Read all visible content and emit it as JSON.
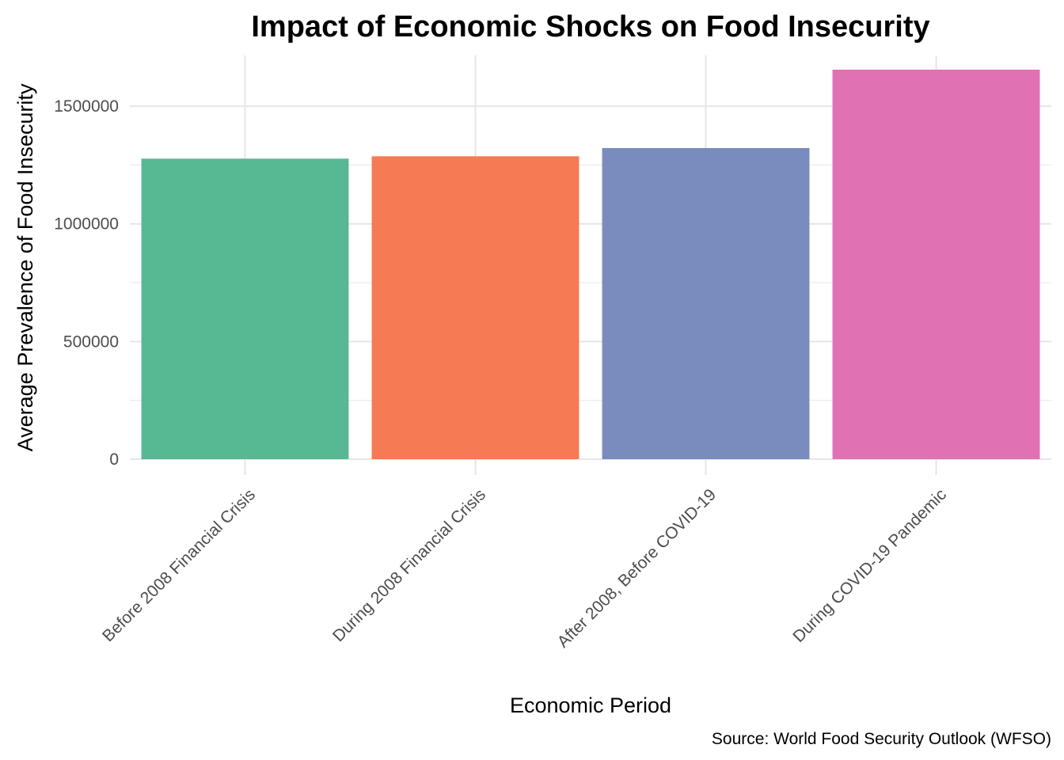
{
  "chart_data": {
    "type": "bar",
    "title": "Impact of Economic Shocks on Food Insecurity",
    "xlabel": "Economic Period",
    "ylabel": "Average Prevalence of Food Insecurity",
    "caption": "Source: World Food Security Outlook (WFSO)",
    "categories": [
      "Before 2008 Financial Crisis",
      "During 2008 Financial Crisis",
      "After 2008, Before COVID-19",
      "During COVID-19 Pandemic"
    ],
    "values": [
      1277000,
      1287000,
      1322000,
      1655000
    ],
    "colors": [
      "#57b994",
      "#f67a53",
      "#7a8cbd",
      "#e072b4"
    ],
    "ylim": [
      0,
      1740000
    ],
    "yticks": [
      0,
      500000,
      1000000,
      1500000
    ],
    "ytick_labels": [
      "0",
      "500000",
      "1000000",
      "1500000"
    ],
    "grid": true,
    "legend": "none"
  }
}
